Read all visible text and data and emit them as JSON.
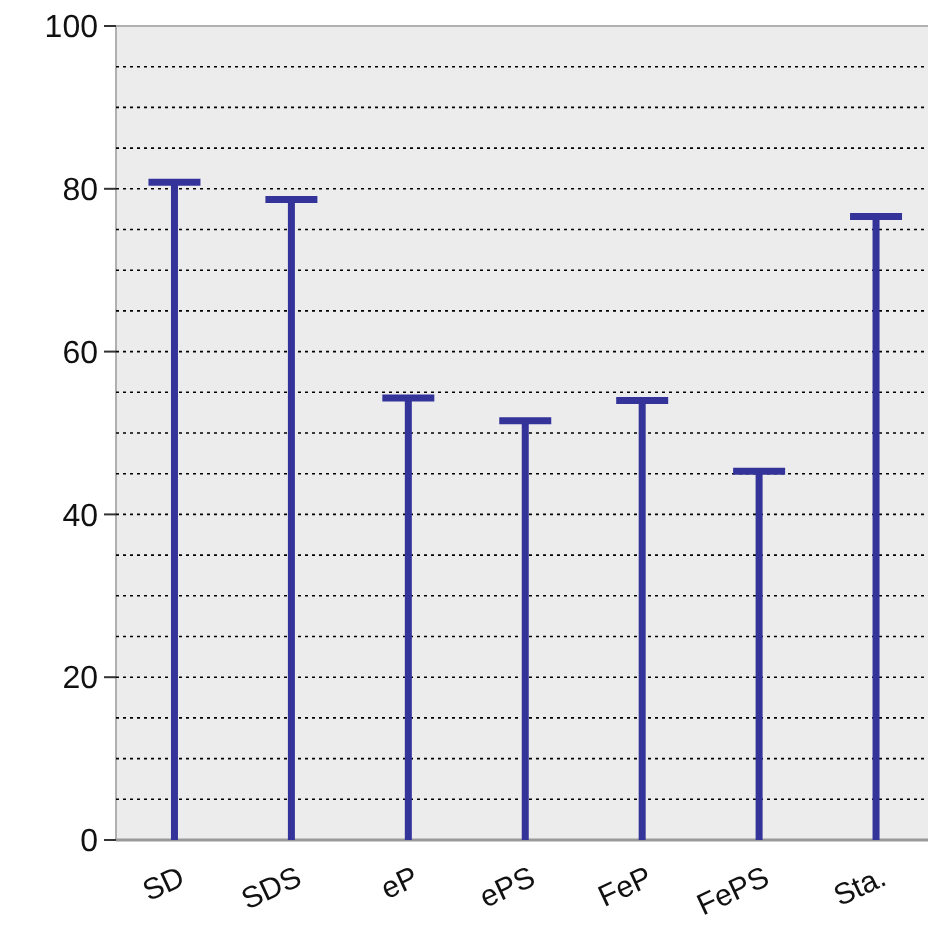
{
  "chart_data": {
    "type": "bar",
    "categories": [
      "SD",
      "SDS",
      "eP",
      "ePS",
      "FeP",
      "FePS",
      "Sta."
    ],
    "values": [
      80.8,
      78.7,
      54.3,
      51.5,
      54.0,
      45.3,
      76.6
    ],
    "color": "#333399",
    "ylim": [
      0,
      100
    ],
    "yticks": [
      0,
      {
        "value": 5,
        "label": null
      },
      {
        "value": 10,
        "label": null
      },
      {
        "value": 15,
        "label": null
      },
      20,
      {
        "value": 25,
        "label": null
      },
      {
        "value": 30,
        "label": null
      },
      {
        "value": 35,
        "label": null
      },
      40,
      {
        "value": 45,
        "label": null
      },
      {
        "value": 50,
        "label": null
      },
      {
        "value": 55,
        "label": null
      },
      60,
      {
        "value": 65,
        "label": null
      },
      {
        "value": 70,
        "label": null
      },
      {
        "value": 75,
        "label": null
      },
      80,
      {
        "value": 85,
        "label": null
      },
      {
        "value": 90,
        "label": null
      },
      {
        "value": 95,
        "label": null
      },
      100
    ],
    "grid": "y"
  }
}
